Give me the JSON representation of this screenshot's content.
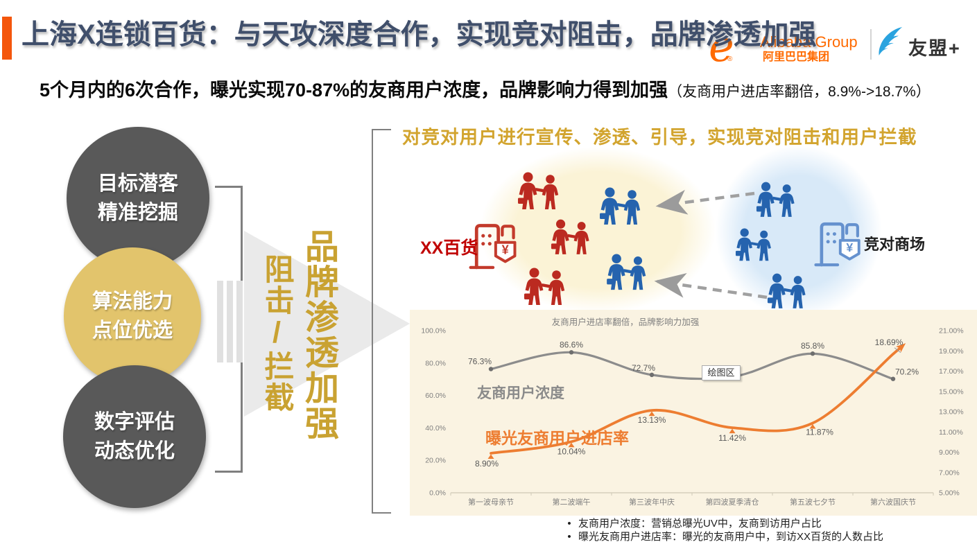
{
  "header": {
    "title": "上海X连锁百货：与天攻深度合作，实现竞对阻击，品牌渗透加强",
    "title_color": "#404F6B",
    "accent_color": "#F4560C",
    "alibaba_swoosh": "e",
    "alibaba_reg": "®",
    "alibaba_group_text": "Alibaba Group",
    "alibaba_cn_text": "阿里巴巴集团",
    "alibaba_color": "#FF6A00",
    "umeng_text": "友盟+"
  },
  "subtitle": {
    "main": "5个月内的6次合作，曝光实现70-87%的友商用户浓度，品牌影响力得到加强",
    "note": "（友商用户进店率翻倍，8.9%->18.7%）"
  },
  "process_circles": [
    {
      "line1": "目标潜客",
      "line2": "精准挖掘",
      "color": "#595959"
    },
    {
      "line1": "算法能力",
      "line2": "点位优选",
      "color": "#E2C46C"
    },
    {
      "line1": "数字评估",
      "line2": "动态优化",
      "color": "#595959"
    }
  ],
  "flow": {
    "main_text": "品牌渗透加强",
    "sub_text": "阻击/拦截",
    "text_color": "#C9A232"
  },
  "right_panel": {
    "heading": "对竞对用户进行宣传、渗透、引导，实现竞对阻击和用户拦截",
    "heading_color": "#D2A42E",
    "xx_store_label": "XX百货",
    "competitor_store_label": "竞对商场",
    "red_color": "#BB2A20",
    "blue_color": "#2563AE"
  },
  "chart_data": {
    "type": "line",
    "title": "友商用户进店率翻倍，品牌影响力加强",
    "background": "#FAF3E2",
    "legend_position": "in-plot-text-labels",
    "grid": false,
    "plot_area_tooltip": "绘图区",
    "categories": [
      "第一波母亲节",
      "第二波端午",
      "第三波年中庆",
      "第四波夏季清仓",
      "第五波七夕节",
      "第六波国庆节"
    ],
    "series": [
      {
        "name": "友商用户浓度",
        "axis": "left",
        "color": "#8C8C8C",
        "values": [
          76.3,
          86.6,
          72.7,
          71.5,
          85.8,
          70.2
        ],
        "labels": [
          "76.3%",
          "86.6%",
          "72.7%",
          "",
          "85.8%",
          "70.2%"
        ]
      },
      {
        "name": "曝光友商用户进店率",
        "axis": "right",
        "color": "#ED7D31",
        "values": [
          8.9,
          10.04,
          13.13,
          11.42,
          11.87,
          18.69
        ],
        "labels": [
          "8.90%",
          "10.04%",
          "13.13%",
          "11.42%",
          "11.87%",
          "18.69%"
        ]
      }
    ],
    "left_axis": {
      "min": 0,
      "max": 100,
      "step": 20,
      "tick_labels": [
        "0.0%",
        "20.0%",
        "40.0%",
        "60.0%",
        "80.0%",
        "100.0%"
      ]
    },
    "right_axis": {
      "min": 5,
      "max": 21,
      "step": 2,
      "tick_labels": [
        "5.00%",
        "7.00%",
        "9.00%",
        "11.00%",
        "13.00%",
        "15.00%",
        "17.00%",
        "19.00%",
        "21.00%"
      ]
    }
  },
  "footnotes": [
    "友商用户浓度：营销总曝光UV中，友商到访用户占比",
    "曝光友商用户进店率：曝光的友商用户中，到访XX百货的人数占比"
  ]
}
